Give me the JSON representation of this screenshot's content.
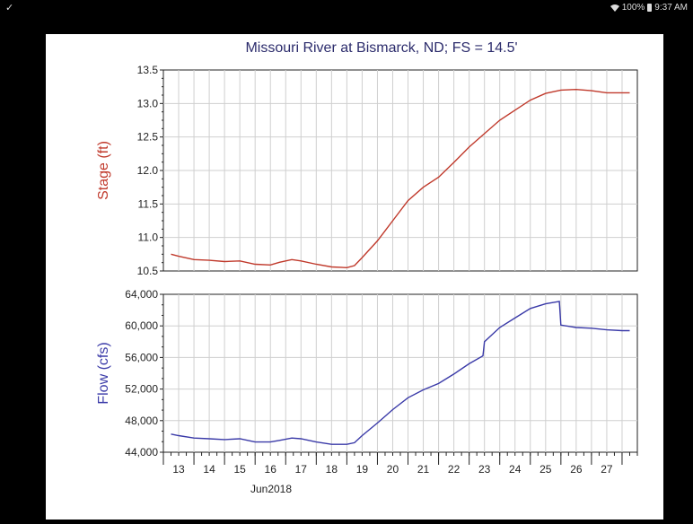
{
  "status_bar": {
    "left_icon": "check-icon",
    "battery_text": "100%",
    "time": "9:37 AM"
  },
  "chart_data": [
    {
      "type": "line",
      "title": "Missouri River at Bismarck, ND; FS = 14.5'",
      "ylabel": "Stage (ft)",
      "ylim": [
        10.5,
        13.5
      ],
      "yticks": [
        "13.5",
        "13.0",
        "12.5",
        "12.0",
        "11.5",
        "11.0",
        "10.5"
      ],
      "grid": true,
      "color": "#c0392b",
      "series": [
        {
          "x": [
            12.75,
            13.0,
            13.5,
            14.0,
            14.5,
            15.0,
            15.5,
            16.0,
            16.3,
            16.7,
            17.0,
            17.5,
            18.0,
            18.5,
            18.75,
            19.0,
            19.5,
            20.0,
            20.5,
            21.0,
            21.5,
            22.0,
            22.5,
            23.0,
            23.5,
            24.0,
            24.5,
            25.0,
            25.5,
            26.0,
            26.5,
            27.0,
            27.5,
            27.75
          ],
          "y": [
            10.75,
            10.72,
            10.67,
            10.66,
            10.64,
            10.65,
            10.6,
            10.59,
            10.63,
            10.67,
            10.65,
            10.6,
            10.56,
            10.55,
            10.58,
            10.7,
            10.95,
            11.25,
            11.55,
            11.75,
            11.9,
            12.12,
            12.35,
            12.55,
            12.75,
            12.9,
            13.05,
            13.15,
            13.2,
            13.21,
            13.19,
            13.16,
            13.16,
            13.16
          ]
        }
      ]
    },
    {
      "type": "line",
      "ylabel": "Flow (cfs)",
      "ylim": [
        44000,
        64000
      ],
      "yticks": [
        "64,000",
        "60,000",
        "56,000",
        "52,000",
        "48,000",
        "44,000"
      ],
      "xlabel_categories": [
        "13",
        "14",
        "15",
        "16",
        "17",
        "18",
        "19",
        "20",
        "21",
        "22",
        "23",
        "24",
        "25",
        "26",
        "27"
      ],
      "xlabel_month": "Jun2018",
      "grid": true,
      "color": "#3a3aa8",
      "series": [
        {
          "x": [
            12.75,
            13.0,
            13.5,
            14.0,
            14.5,
            15.0,
            15.5,
            16.0,
            16.3,
            16.7,
            17.0,
            17.5,
            18.0,
            18.5,
            18.75,
            19.0,
            19.5,
            20.0,
            20.5,
            21.0,
            21.5,
            22.0,
            22.5,
            22.95,
            23.0,
            23.5,
            24.0,
            24.5,
            25.0,
            25.45,
            25.5,
            26.0,
            26.5,
            27.0,
            27.5,
            27.75
          ],
          "y": [
            46300,
            46100,
            45800,
            45700,
            45600,
            45700,
            45300,
            45300,
            45500,
            45800,
            45700,
            45300,
            45000,
            45000,
            45200,
            46100,
            47700,
            49400,
            50900,
            51900,
            52700,
            53900,
            55200,
            56200,
            58000,
            59800,
            61000,
            62200,
            62800,
            63100,
            60100,
            59800,
            59700,
            59500,
            59400,
            59400
          ]
        }
      ]
    }
  ]
}
